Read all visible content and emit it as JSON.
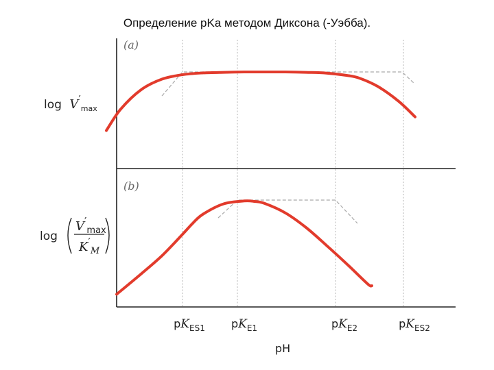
{
  "title": "Определение pKa методом Диксона (-Уэбба).",
  "chart_data": {
    "type": "line",
    "xlabel": "pH",
    "x_ticks": [
      {
        "base": "p",
        "K": "K",
        "sub": "ES1"
      },
      {
        "base": "p",
        "K": "K",
        "sub": "E1"
      },
      {
        "base": "p",
        "K": "K",
        "sub": "E2"
      },
      {
        "base": "p",
        "K": "K",
        "sub": "ES2"
      }
    ],
    "panels": [
      {
        "label": "(a)",
        "ylabel": {
          "prefix": "log",
          "var": "V",
          "prime": "′",
          "sub": "max"
        },
        "series": [
          {
            "x": [
              -3.7,
              -3.0,
              -2.0,
              -1.0,
              0.0,
              1.0,
              2.0,
              3.0,
              4.0,
              5.0,
              6.0,
              7.0,
              8.0,
              8.6,
              9.5,
              10.5,
              11.3
            ],
            "y": [
              -3.0,
              -1.9,
              -0.9,
              -0.37,
              -0.14,
              -0.05,
              -0.02,
              0.0,
              0.0,
              0.0,
              -0.02,
              -0.06,
              -0.18,
              -0.32,
              -0.75,
              -1.5,
              -2.3
            ]
          }
        ]
      },
      {
        "label": "(b)",
        "ylabel": {
          "prefix": "log",
          "num_var": "V",
          "num_prime": "′",
          "num_sub": "max",
          "den_var": "K",
          "den_prime": "′",
          "den_sub": "M"
        },
        "series": [
          {
            "x": [
              -3.2,
              -2.0,
              -1.0,
              0.0,
              0.5,
              1.0,
              2.0,
              3.0,
              3.5,
              4.0,
              5.0,
              6.0,
              7.0,
              8.0,
              9.0,
              9.2
            ],
            "y": [
              -5.5,
              -4.3,
              -3.25,
              -2.0,
              -1.35,
              -0.82,
              -0.22,
              -0.05,
              -0.08,
              -0.2,
              -0.75,
              -1.6,
              -2.65,
              -3.75,
              -4.9,
              -5.0
            ]
          }
        ]
      }
    ]
  }
}
